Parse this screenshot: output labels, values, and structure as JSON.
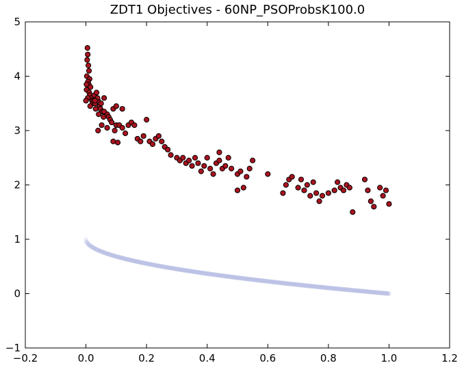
{
  "chart_data": {
    "type": "scatter",
    "title": "ZDT1 Objectives - 60NP_PSOProbsK100.0",
    "xlabel": "",
    "ylabel": "",
    "xlim": [
      -0.2,
      1.2
    ],
    "ylim": [
      -1,
      5
    ],
    "x_ticks": [
      -0.2,
      0.0,
      0.2,
      0.4,
      0.6,
      0.8,
      1.0,
      1.2
    ],
    "x_tick_labels": [
      "−0.2",
      "0.0",
      "0.2",
      "0.4",
      "0.6",
      "0.8",
      "1.0",
      "1.2"
    ],
    "y_ticks": [
      -1,
      0,
      1,
      2,
      3,
      4,
      5
    ],
    "y_tick_labels": [
      "−1",
      "0",
      "1",
      "2",
      "3",
      "4",
      "5"
    ],
    "grid": false,
    "legend": "none",
    "series": [
      {
        "color": "#bcbfe8",
        "marker": "circle",
        "edge_color": "#bcbfe8",
        "opacity": 0.45,
        "curve": "pareto_front_g1",
        "x_range": [
          0.0,
          1.0
        ],
        "n_points": 1000,
        "x": [
          0.0,
          0.01,
          0.05,
          0.1,
          0.2,
          0.3,
          0.4,
          0.5,
          0.6,
          0.7,
          0.8,
          0.9,
          1.0
        ],
        "y": [
          1.0,
          0.9,
          0.78,
          0.68,
          0.55,
          0.45,
          0.37,
          0.29,
          0.23,
          0.16,
          0.11,
          0.05,
          0.0
        ]
      },
      {
        "color": "#a8141f",
        "marker": "circle",
        "edge_color": "#000000",
        "opacity": 1,
        "x": [
          0.005,
          0.006,
          0.004,
          0.008,
          0.01,
          0.003,
          0.012,
          0.007,
          0.009,
          0.015,
          0.002,
          0.011,
          0.013,
          0.018,
          0.02,
          0.022,
          0.006,
          0.014,
          0.025,
          0.03,
          0.028,
          0.032,
          0.035,
          0.04,
          0.045,
          0.05,
          0.042,
          0.038,
          0.048,
          0.055,
          0.06,
          0.065,
          0.052,
          0.058,
          0.07,
          0.075,
          0.08,
          0.085,
          0.09,
          0.095,
          0.1,
          0.105,
          0.11,
          0.12,
          0.13,
          0.14,
          0.15,
          0.16,
          0.17,
          0.18,
          0.19,
          0.2,
          0.21,
          0.22,
          0.23,
          0.24,
          0.25,
          0.26,
          0.27,
          0.28,
          0.3,
          0.31,
          0.32,
          0.33,
          0.34,
          0.35,
          0.36,
          0.37,
          0.38,
          0.39,
          0.4,
          0.41,
          0.42,
          0.43,
          0.44,
          0.45,
          0.46,
          0.47,
          0.48,
          0.5,
          0.51,
          0.52,
          0.53,
          0.54,
          0.6,
          0.65,
          0.66,
          0.67,
          0.68,
          0.7,
          0.71,
          0.72,
          0.73,
          0.74,
          0.75,
          0.76,
          0.77,
          0.78,
          0.8,
          0.82,
          0.83,
          0.84,
          0.85,
          0.86,
          0.87,
          0.88,
          0.92,
          0.93,
          0.94,
          0.95,
          0.97,
          0.98,
          0.99,
          1.0,
          0.04,
          0.06,
          0.1,
          0.12,
          0.09,
          0.03,
          0.0,
          0.002,
          0.07,
          0.44,
          0.5,
          0.55
        ],
        "y": [
          4.52,
          4.4,
          4.3,
          4.2,
          4.1,
          4.0,
          3.95,
          3.9,
          3.85,
          3.8,
          3.75,
          3.7,
          3.65,
          3.6,
          3.55,
          3.5,
          3.6,
          3.45,
          3.55,
          3.5,
          3.65,
          3.4,
          3.7,
          3.55,
          3.45,
          3.5,
          3.3,
          3.6,
          3.4,
          3.35,
          3.6,
          3.3,
          3.1,
          3.25,
          3.3,
          3.25,
          3.2,
          3.15,
          3.4,
          3.0,
          3.1,
          2.78,
          3.1,
          3.05,
          2.95,
          3.1,
          3.15,
          3.1,
          2.85,
          2.8,
          2.9,
          3.2,
          2.8,
          2.75,
          2.85,
          2.9,
          2.8,
          2.7,
          2.65,
          2.55,
          2.5,
          2.45,
          2.5,
          2.4,
          2.45,
          2.35,
          2.5,
          2.4,
          2.25,
          2.35,
          2.5,
          2.3,
          2.2,
          2.4,
          2.45,
          2.3,
          2.35,
          2.5,
          2.3,
          2.2,
          2.25,
          1.95,
          2.15,
          2.3,
          2.2,
          1.85,
          2.0,
          2.1,
          2.15,
          1.95,
          2.1,
          1.9,
          2.0,
          1.8,
          2.05,
          1.85,
          1.7,
          1.8,
          1.85,
          1.9,
          2.05,
          1.95,
          1.9,
          2.0,
          1.95,
          1.5,
          2.1,
          1.9,
          1.7,
          1.6,
          1.95,
          1.8,
          1.9,
          1.65,
          3.0,
          3.35,
          3.45,
          3.4,
          2.8,
          3.55,
          3.55,
          3.85,
          3.05,
          2.6,
          1.9,
          2.45
        ]
      }
    ]
  }
}
